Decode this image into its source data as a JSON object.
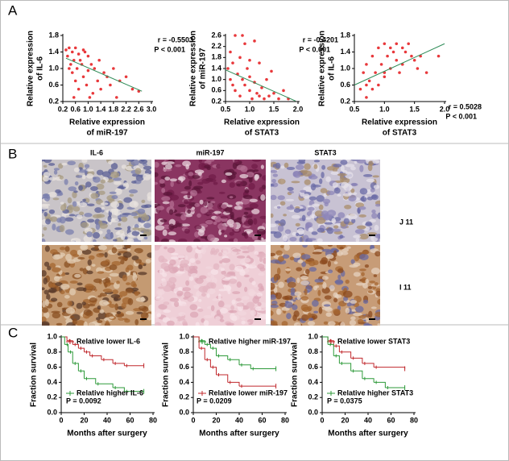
{
  "panels": [
    "A",
    "B",
    "C"
  ],
  "images": {
    "columns": [
      "IL-6",
      "miR-197",
      "STAT3"
    ],
    "rows": [
      "J 11",
      "I 11"
    ]
  },
  "chart_data": [
    {
      "type": "scatter",
      "xlabel": [
        "Relative expression",
        "of miR-197"
      ],
      "ylabel": [
        "Relative expression",
        "of IL-6"
      ],
      "annotations": [
        "r = -0.5503",
        "P < 0.001"
      ],
      "color": "#e8383b",
      "fit_color": "#2e8b57",
      "xlim": [
        0.2,
        3.0
      ],
      "xticks": [
        0.2,
        0.6,
        {
          "value": 1,
          "label": "1.0"
        },
        1.4,
        1.8,
        2.2,
        2.6,
        {
          "value": 3,
          "label": "3.0"
        }
      ],
      "ylim": [
        0.2,
        1.8
      ],
      "yticks": [
        0.2,
        0.6,
        {
          "value": 1,
          "label": "1.0"
        },
        1.4,
        1.8
      ],
      "x": [
        0.3,
        0.35,
        0.4,
        0.45,
        0.5,
        0.5,
        0.55,
        0.6,
        0.6,
        0.65,
        0.7,
        0.7,
        0.75,
        0.8,
        0.85,
        0.9,
        0.95,
        1.0,
        1.0,
        1.1,
        1.15,
        1.2,
        1.3,
        1.35,
        1.4,
        1.5,
        1.6,
        1.7,
        1.8,
        1.9,
        2.0,
        2.2,
        2.4,
        2.6,
        0.4,
        0.55,
        0.85,
        1.05
      ],
      "values": [
        1.45,
        1.3,
        1.5,
        1.1,
        1.4,
        0.9,
        1.2,
        1.5,
        0.7,
        1.0,
        1.35,
        0.5,
        1.2,
        1.1,
        0.8,
        1.4,
        0.6,
        1.3,
        0.95,
        1.1,
        0.4,
        1.0,
        0.7,
        1.2,
        0.5,
        0.9,
        0.8,
        0.6,
        1.0,
        0.3,
        0.7,
        0.8,
        0.5,
        0.45,
        1.0,
        0.3,
        1.45,
        0.3
      ],
      "fit": {
        "x": [
          0.3,
          2.7
        ],
        "y": [
          1.25,
          0.45
        ]
      }
    },
    {
      "type": "scatter",
      "xlabel": [
        "Relative expression",
        "of STAT3"
      ],
      "ylabel": [
        "Relative expression",
        "of miR-197"
      ],
      "annotations": [
        "r = -0.4201",
        "P < 0.001"
      ],
      "color": "#e8383b",
      "fit_color": "#2e8b57",
      "xlim": [
        0.5,
        2.0
      ],
      "xticks": [
        0.5,
        {
          "value": 1,
          "label": "1.0"
        },
        1.5,
        {
          "value": 2,
          "label": "2.0"
        }
      ],
      "ylim": [
        0.2,
        2.6
      ],
      "yticks": [
        0.2,
        0.6,
        {
          "value": 1,
          "label": "1.0"
        },
        1.4,
        1.8,
        2.2,
        2.6
      ],
      "x": [
        0.55,
        0.6,
        0.6,
        0.65,
        0.7,
        0.7,
        0.75,
        0.8,
        0.8,
        0.85,
        0.9,
        0.9,
        0.95,
        1.0,
        1.0,
        1.05,
        1.1,
        1.1,
        1.15,
        1.2,
        1.25,
        1.3,
        1.35,
        1.4,
        1.45,
        1.5,
        1.6,
        1.7,
        1.8,
        0.65,
        0.85,
        1.0,
        1.2
      ],
      "values": [
        1.4,
        2.0,
        1.0,
        1.6,
        2.6,
        0.6,
        1.2,
        1.8,
        0.4,
        1.0,
        2.3,
        0.8,
        1.4,
        0.6,
        1.1,
        0.3,
        2.4,
        0.9,
        0.5,
        1.6,
        0.7,
        0.3,
        1.0,
        0.4,
        1.3,
        0.5,
        0.3,
        0.6,
        0.3,
        0.8,
        2.6,
        1.7,
        0.4
      ],
      "fit": {
        "x": [
          0.5,
          1.95
        ],
        "y": [
          1.35,
          0.22
        ]
      }
    },
    {
      "type": "scatter",
      "xlabel": [
        "Relative expression",
        "of STAT3"
      ],
      "ylabel": [
        "Relative expression",
        "of IL-6"
      ],
      "annotations": [
        "r = 0.5028",
        "P < 0.001"
      ],
      "color": "#e8383b",
      "fit_color": "#2e8b57",
      "xlim": [
        0.5,
        2.0
      ],
      "xticks": [
        0.5,
        {
          "value": 1,
          "label": "1.0"
        },
        1.5,
        {
          "value": 2,
          "label": "2.0"
        }
      ],
      "ylim": [
        0.2,
        1.8
      ],
      "yticks": [
        0.2,
        0.6,
        {
          "value": 1,
          "label": "1.0"
        },
        1.4,
        1.8
      ],
      "x": [
        0.6,
        0.65,
        0.7,
        0.7,
        0.75,
        0.8,
        0.8,
        0.85,
        0.9,
        0.9,
        0.95,
        1.0,
        1.0,
        1.05,
        1.1,
        1.1,
        1.15,
        1.2,
        1.2,
        1.25,
        1.3,
        1.3,
        1.35,
        1.4,
        1.45,
        1.5,
        1.55,
        1.6,
        1.7,
        1.9,
        0.7,
        1.0
      ],
      "values": [
        0.5,
        0.9,
        0.3,
        1.1,
        0.7,
        1.3,
        0.5,
        0.9,
        1.5,
        0.6,
        1.1,
        1.6,
        0.8,
        1.3,
        1.5,
        1.0,
        1.4,
        1.6,
        1.2,
        0.9,
        1.5,
        1.1,
        1.4,
        1.6,
        1.3,
        1.2,
        1.0,
        1.3,
        0.9,
        1.3,
        0.6,
        0.9
      ],
      "fit": {
        "x": [
          0.5,
          2.0
        ],
        "y": [
          0.6,
          1.6
        ]
      }
    },
    {
      "type": "km",
      "xlabel": "Months after surgery",
      "ylabel": "Fraction survival",
      "annotations": [
        "P = 0.0092"
      ],
      "xlim": [
        0,
        80
      ],
      "xticks": [
        0,
        20,
        40,
        60,
        80
      ],
      "ylim": [
        0,
        1
      ],
      "yticks": [
        {
          "value": 0,
          "label": "0.0"
        },
        0.2,
        0.4,
        0.6,
        0.8,
        {
          "value": 1,
          "label": "1.0"
        }
      ],
      "series": [
        {
          "name": "Relative lower IL-6",
          "color": "#c0282d",
          "x": [
            0,
            5,
            10,
            15,
            20,
            25,
            35,
            45,
            55,
            72
          ],
          "values": [
            1.0,
            0.95,
            0.9,
            0.85,
            0.8,
            0.75,
            0.7,
            0.65,
            0.62,
            0.62
          ]
        },
        {
          "name": "Relative higher IL-6",
          "color": "#2e9a3a",
          "x": [
            0,
            3,
            6,
            10,
            15,
            20,
            30,
            45,
            55,
            72
          ],
          "values": [
            1.0,
            0.9,
            0.8,
            0.65,
            0.55,
            0.45,
            0.38,
            0.33,
            0.28,
            0.28
          ]
        }
      ]
    },
    {
      "type": "km",
      "xlabel": "Months after surgery",
      "ylabel": "Fraction survival",
      "annotations": [
        "P = 0.0209"
      ],
      "xlim": [
        0,
        80
      ],
      "xticks": [
        0,
        20,
        40,
        60,
        80
      ],
      "ylim": [
        0,
        1
      ],
      "yticks": [
        {
          "value": 0,
          "label": "0.0"
        },
        0.2,
        0.4,
        0.6,
        0.8,
        {
          "value": 1,
          "label": "1.0"
        }
      ],
      "series": [
        {
          "name": "Relative higher miR-197",
          "color": "#2e9a3a",
          "x": [
            0,
            5,
            10,
            15,
            20,
            30,
            40,
            50,
            72
          ],
          "values": [
            1.0,
            0.95,
            0.9,
            0.85,
            0.75,
            0.7,
            0.63,
            0.58,
            0.58
          ]
        },
        {
          "name": "Relative lower miR-197",
          "color": "#c0282d",
          "x": [
            0,
            5,
            10,
            15,
            20,
            30,
            40,
            72
          ],
          "values": [
            1.0,
            0.85,
            0.7,
            0.6,
            0.5,
            0.4,
            0.35,
            0.35
          ]
        }
      ]
    },
    {
      "type": "km",
      "xlabel": "Months after surgery",
      "ylabel": "Fraction survival",
      "annotations": [
        "P = 0.0375"
      ],
      "xlim": [
        0,
        80
      ],
      "xticks": [
        0,
        20,
        40,
        60,
        80
      ],
      "ylim": [
        0,
        1
      ],
      "yticks": [
        {
          "value": 0,
          "label": "0.0"
        },
        0.2,
        0.4,
        0.6,
        0.8,
        {
          "value": 1,
          "label": "1.0"
        }
      ],
      "series": [
        {
          "name": "Relative lower STAT3",
          "color": "#c0282d",
          "x": [
            0,
            5,
            10,
            15,
            25,
            35,
            45,
            72
          ],
          "values": [
            1.0,
            0.95,
            0.88,
            0.8,
            0.72,
            0.65,
            0.6,
            0.58
          ]
        },
        {
          "name": "Relative higher STAT3",
          "color": "#2e9a3a",
          "x": [
            0,
            5,
            10,
            15,
            25,
            35,
            45,
            55,
            72
          ],
          "values": [
            1.0,
            0.9,
            0.75,
            0.65,
            0.55,
            0.45,
            0.4,
            0.33,
            0.33
          ]
        }
      ]
    }
  ]
}
